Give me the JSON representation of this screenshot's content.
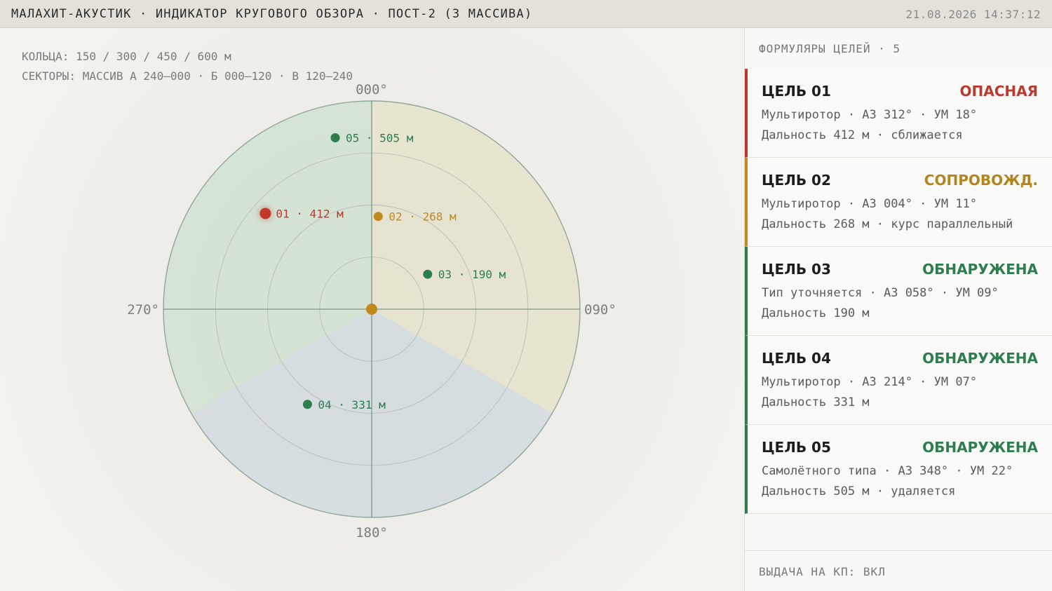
{
  "header": {
    "title": "МАЛАХИТ-АКУСТИК · ИНДИКАТОР КРУГОВОГО ОБЗОРА · ПОСТ-2 (3 МАССИВА)",
    "datetime": "21.08.2026 14:37:12"
  },
  "scope": {
    "rings_info": "КОЛЬЦА: 150 / 300 / 450 / 600 м",
    "sectors_info": "СЕКТОРЫ: МАССИВ А 240–000 · Б 000–120 · В 120–240",
    "bearings": {
      "n": "000°",
      "e": "090°",
      "s": "180°",
      "w": "270°"
    },
    "rings_m": [
      150,
      300,
      450,
      600
    ],
    "max_range_m": 600,
    "sectors": [
      {
        "name": "А",
        "from_deg": 240,
        "to_deg": 360,
        "color": "#d2e2d2"
      },
      {
        "name": "Б",
        "from_deg": 0,
        "to_deg": 120,
        "color": "#e6e3cd"
      },
      {
        "name": "В",
        "from_deg": 120,
        "to_deg": 240,
        "color": "#d3dce0"
      }
    ],
    "station_color": "#c08a1e",
    "targets": [
      {
        "id": "01",
        "label": "01 · 412 м",
        "az_deg": 312,
        "range_m": 412,
        "color": "#c0392b",
        "glow": true
      },
      {
        "id": "02",
        "label": "02 · 268 м",
        "az_deg": 4,
        "range_m": 268,
        "color": "#c08a1e"
      },
      {
        "id": "03",
        "label": "03 · 190 м",
        "az_deg": 58,
        "range_m": 190,
        "color": "#2e7d4f"
      },
      {
        "id": "04",
        "label": "04 · 331 м",
        "az_deg": 214,
        "range_m": 331,
        "color": "#2e7d4f"
      },
      {
        "id": "05",
        "label": "05 · 505 м",
        "az_deg": 348,
        "range_m": 505,
        "color": "#2e7d4f"
      }
    ]
  },
  "sidebar": {
    "header": "ФОРМУЛЯРЫ ЦЕЛЕЙ · 5",
    "tracks": [
      {
        "name": "ЦЕЛЬ 01",
        "status": "ОПАСНАЯ",
        "level": "danger",
        "line1": "Мультиротор · АЗ 312° · УМ 18°",
        "line2": "Дальность 412 м · сближается"
      },
      {
        "name": "ЦЕЛЬ 02",
        "status": "СОПРОВОЖД.",
        "level": "track",
        "line1": "Мультиротор · АЗ 004° · УМ 11°",
        "line2": "Дальность 268 м · курс параллельный"
      },
      {
        "name": "ЦЕЛЬ 03",
        "status": "ОБНАРУЖЕНА",
        "level": "detect",
        "line1": "Тип уточняется · АЗ 058° · УМ 09°",
        "line2": "Дальность 190 м"
      },
      {
        "name": "ЦЕЛЬ 04",
        "status": "ОБНАРУЖЕНА",
        "level": "detect",
        "line1": "Мультиротор · АЗ 214° · УМ 07°",
        "line2": "Дальность 331 м"
      },
      {
        "name": "ЦЕЛЬ 05",
        "status": "ОБНАРУЖЕНА",
        "level": "detect",
        "line1": "Самолётного типа · АЗ 348° · УМ 22°",
        "line2": "Дальность 505 м · удаляется"
      }
    ],
    "footer": "ВЫДАЧА НА КП: ВКЛ"
  }
}
